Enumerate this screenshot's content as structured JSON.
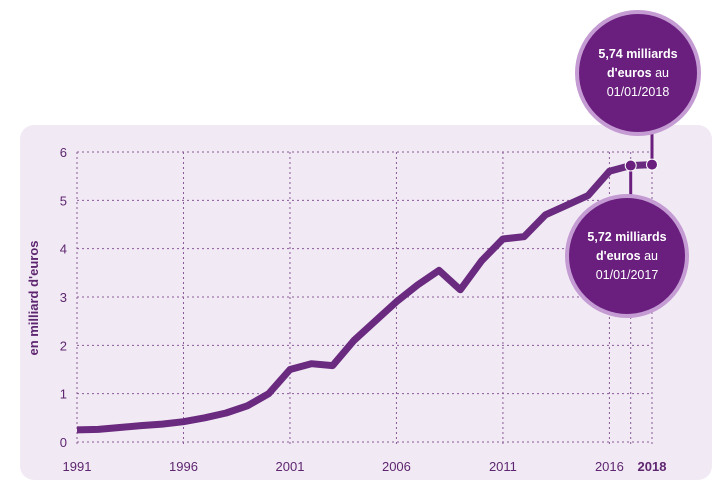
{
  "colors": {
    "panel": "#f1e9f4",
    "line": "#6a2a7f",
    "grid": "#8a5a99",
    "text": "#5e2670",
    "bubble": "#6a1f7e",
    "bubble_ring": "#c49bd3"
  },
  "chart_data": {
    "type": "line",
    "title": "",
    "xlabel": "",
    "ylabel": "en milliard d'euros",
    "xlim": [
      1991,
      2018
    ],
    "ylim": [
      0,
      6
    ],
    "grid": true,
    "x_ticks": [
      {
        "value": 1991,
        "label": "1991",
        "bold": false
      },
      {
        "value": 1996,
        "label": "1996",
        "bold": false
      },
      {
        "value": 2001,
        "label": "2001",
        "bold": false
      },
      {
        "value": 2006,
        "label": "2006",
        "bold": false
      },
      {
        "value": 2011,
        "label": "2011",
        "bold": false
      },
      {
        "value": 2016,
        "label": "2016",
        "bold": false
      },
      {
        "value": 2018,
        "label": "2018",
        "bold": true
      }
    ],
    "y_ticks": [
      {
        "value": 0,
        "label": "0"
      },
      {
        "value": 1,
        "label": "1"
      },
      {
        "value": 2,
        "label": "2"
      },
      {
        "value": 3,
        "label": "3"
      },
      {
        "value": 4,
        "label": "4"
      },
      {
        "value": 5,
        "label": "5"
      },
      {
        "value": 6,
        "label": "6"
      }
    ],
    "x": [
      1991,
      1992,
      1993,
      1994,
      1995,
      1996,
      1997,
      1998,
      1999,
      2000,
      2001,
      2002,
      2003,
      2004,
      2005,
      2006,
      2007,
      2008,
      2009,
      2010,
      2011,
      2012,
      2013,
      2014,
      2015,
      2016,
      2017,
      2018
    ],
    "values": [
      0.25,
      0.26,
      0.3,
      0.34,
      0.37,
      0.42,
      0.5,
      0.6,
      0.75,
      1.0,
      1.5,
      1.62,
      1.58,
      2.1,
      2.5,
      2.9,
      3.25,
      3.55,
      3.15,
      3.75,
      4.2,
      4.25,
      4.7,
      4.9,
      5.1,
      5.6,
      5.72,
      5.74
    ],
    "annotations": [
      {
        "x": 2018,
        "y": 5.74,
        "lines": [
          [
            {
              "text": "5,74 milliards",
              "bold": true
            }
          ],
          [
            {
              "text": "d'euros",
              "bold": true
            },
            {
              "text": " au",
              "bold": false
            }
          ],
          [
            {
              "text": "01/01/2018",
              "bold": false
            }
          ]
        ]
      },
      {
        "x": 2017,
        "y": 5.72,
        "lines": [
          [
            {
              "text": "5,72 milliards",
              "bold": true
            }
          ],
          [
            {
              "text": "d'euros",
              "bold": true
            },
            {
              "text": " au",
              "bold": false
            }
          ],
          [
            {
              "text": "01/01/2017",
              "bold": false
            }
          ]
        ]
      }
    ]
  }
}
